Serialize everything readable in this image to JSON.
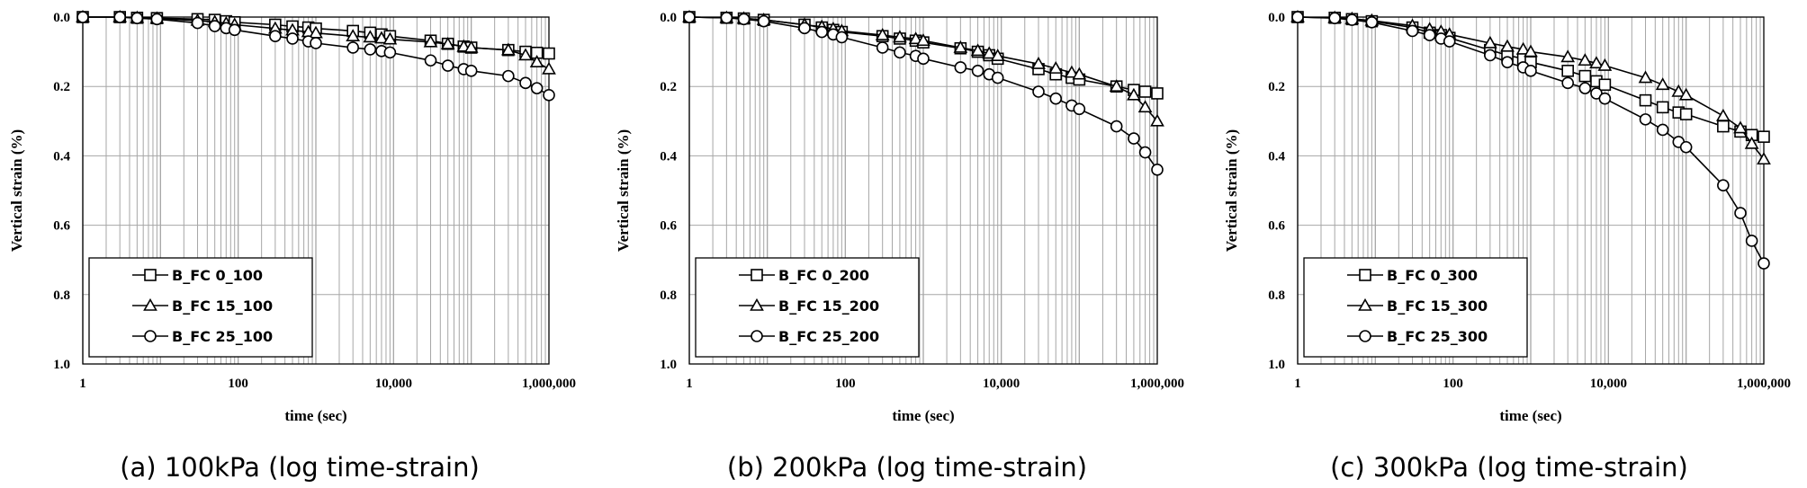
{
  "chart_data": [
    {
      "type": "line",
      "caption": "(a) 100kPa (log time-strain)",
      "xlabel": "time (sec)",
      "ylabel": "Vertical strain (%)",
      "x_scale": "log",
      "xlim": [
        1,
        1000000
      ],
      "ylim": [
        0,
        1.0
      ],
      "y_inverted": true,
      "x_tick_labels": [
        "1",
        "100",
        "10,000",
        "1,000,000"
      ],
      "y_tick_labels": [
        "0.0",
        "0.2",
        "0.4",
        "0.6",
        "0.8",
        "1.0"
      ],
      "grid": true,
      "legend": "bottom-left",
      "series": [
        {
          "name": "B_FC 0_100",
          "marker": "square",
          "x": [
            1,
            3,
            5,
            9,
            30,
            50,
            70,
            90,
            300,
            500,
            800,
            1000,
            3000,
            5000,
            7000,
            9000,
            30000,
            50000,
            80000,
            100000,
            300000,
            500000,
            700000,
            1000000
          ],
          "y": [
            0,
            0,
            0.002,
            0.003,
            0.006,
            0.008,
            0.012,
            0.015,
            0.022,
            0.027,
            0.03,
            0.033,
            0.04,
            0.045,
            0.05,
            0.055,
            0.068,
            0.077,
            0.085,
            0.088,
            0.095,
            0.1,
            0.103,
            0.105
          ]
        },
        {
          "name": "B_FC 15_100",
          "marker": "triangle",
          "x": [
            1,
            3,
            5,
            9,
            30,
            50,
            70,
            90,
            300,
            500,
            800,
            1000,
            3000,
            5000,
            7000,
            9000,
            30000,
            50000,
            80000,
            100000,
            300000,
            500000,
            700000,
            1000000
          ],
          "y": [
            0,
            0,
            0.002,
            0.004,
            0.01,
            0.014,
            0.018,
            0.022,
            0.033,
            0.038,
            0.043,
            0.046,
            0.055,
            0.058,
            0.061,
            0.064,
            0.072,
            0.078,
            0.085,
            0.088,
            0.095,
            0.11,
            0.13,
            0.15
          ]
        },
        {
          "name": "B_FC 25_100",
          "marker": "circle",
          "x": [
            1,
            3,
            5,
            9,
            30,
            50,
            70,
            90,
            300,
            500,
            800,
            1000,
            3000,
            5000,
            7000,
            9000,
            30000,
            50000,
            80000,
            100000,
            300000,
            500000,
            700000,
            1000000
          ],
          "y": [
            0,
            0,
            0.003,
            0.006,
            0.017,
            0.026,
            0.032,
            0.037,
            0.055,
            0.062,
            0.07,
            0.075,
            0.088,
            0.093,
            0.098,
            0.102,
            0.125,
            0.14,
            0.15,
            0.155,
            0.17,
            0.19,
            0.205,
            0.225
          ]
        }
      ]
    },
    {
      "type": "line",
      "caption": "(b) 200kPa (log time-strain)",
      "xlabel": "time (sec)",
      "ylabel": "Vertical strain (%)",
      "x_scale": "log",
      "xlim": [
        1,
        1000000
      ],
      "ylim": [
        0,
        1.0
      ],
      "y_inverted": true,
      "x_tick_labels": [
        "1",
        "100",
        "10,000",
        "1,000,000"
      ],
      "y_tick_labels": [
        "0.0",
        "0.2",
        "0.4",
        "0.6",
        "0.8",
        "1.0"
      ],
      "grid": true,
      "legend": "bottom-left",
      "series": [
        {
          "name": "B_FC 0_200",
          "marker": "square",
          "x": [
            1,
            3,
            5,
            9,
            30,
            50,
            70,
            90,
            300,
            500,
            800,
            1000,
            3000,
            5000,
            7000,
            9000,
            30000,
            50000,
            80000,
            100000,
            300000,
            500000,
            700000,
            1000000
          ],
          "y": [
            0,
            0.002,
            0.004,
            0.008,
            0.022,
            0.03,
            0.037,
            0.043,
            0.055,
            0.062,
            0.068,
            0.073,
            0.09,
            0.1,
            0.11,
            0.12,
            0.15,
            0.165,
            0.175,
            0.18,
            0.2,
            0.21,
            0.215,
            0.22
          ]
        },
        {
          "name": "B_FC 15_200",
          "marker": "triangle",
          "x": [
            1,
            3,
            5,
            9,
            30,
            50,
            70,
            90,
            300,
            500,
            800,
            1000,
            3000,
            5000,
            7000,
            9000,
            30000,
            50000,
            80000,
            100000,
            300000,
            500000,
            700000,
            1000000
          ],
          "y": [
            0,
            0.002,
            0.004,
            0.008,
            0.022,
            0.028,
            0.034,
            0.04,
            0.052,
            0.058,
            0.063,
            0.068,
            0.088,
            0.097,
            0.105,
            0.112,
            0.135,
            0.148,
            0.16,
            0.165,
            0.2,
            0.225,
            0.26,
            0.3
          ]
        },
        {
          "name": "B_FC 25_200",
          "marker": "circle",
          "x": [
            1,
            3,
            5,
            9,
            30,
            50,
            70,
            90,
            300,
            500,
            800,
            1000,
            3000,
            5000,
            7000,
            9000,
            30000,
            50000,
            80000,
            100000,
            300000,
            500000,
            700000,
            1000000
          ],
          "y": [
            0,
            0.002,
            0.006,
            0.012,
            0.032,
            0.043,
            0.05,
            0.058,
            0.088,
            0.102,
            0.112,
            0.12,
            0.145,
            0.155,
            0.165,
            0.175,
            0.215,
            0.235,
            0.255,
            0.265,
            0.315,
            0.35,
            0.39,
            0.44
          ]
        }
      ]
    },
    {
      "type": "line",
      "caption": "(c) 300kPa (log time-strain)",
      "xlabel": "time (sec)",
      "ylabel": "Vertical strain (%)",
      "x_scale": "log",
      "xlim": [
        1,
        1000000
      ],
      "ylim": [
        0,
        1.0
      ],
      "y_inverted": true,
      "x_tick_labels": [
        "1",
        "100",
        "10,000",
        "1,000,000"
      ],
      "y_tick_labels": [
        "0.0",
        "0.2",
        "0.4",
        "0.6",
        "0.8",
        "1.0"
      ],
      "grid": true,
      "legend": "bottom-left",
      "series": [
        {
          "name": "B_FC 0_300",
          "marker": "square",
          "x": [
            1,
            3,
            5,
            9,
            30,
            50,
            70,
            90,
            300,
            500,
            800,
            1000,
            3000,
            5000,
            7000,
            9000,
            30000,
            50000,
            80000,
            100000,
            300000,
            500000,
            700000,
            1000000
          ],
          "y": [
            0,
            0.002,
            0.006,
            0.012,
            0.03,
            0.045,
            0.052,
            0.06,
            0.095,
            0.11,
            0.12,
            0.13,
            0.155,
            0.17,
            0.185,
            0.195,
            0.24,
            0.26,
            0.275,
            0.28,
            0.315,
            0.33,
            0.34,
            0.345
          ]
        },
        {
          "name": "B_FC 15_300",
          "marker": "triangle",
          "x": [
            1,
            3,
            5,
            9,
            30,
            50,
            70,
            90,
            300,
            500,
            800,
            1000,
            3000,
            5000,
            7000,
            9000,
            30000,
            50000,
            80000,
            100000,
            300000,
            500000,
            700000,
            1000000
          ],
          "y": [
            0,
            0.002,
            0.005,
            0.01,
            0.025,
            0.035,
            0.042,
            0.05,
            0.075,
            0.085,
            0.093,
            0.1,
            0.115,
            0.125,
            0.133,
            0.14,
            0.175,
            0.195,
            0.215,
            0.225,
            0.285,
            0.32,
            0.365,
            0.41
          ]
        },
        {
          "name": "B_FC 25_300",
          "marker": "circle",
          "x": [
            1,
            3,
            5,
            9,
            30,
            50,
            70,
            90,
            300,
            500,
            800,
            1000,
            3000,
            5000,
            7000,
            9000,
            30000,
            50000,
            80000,
            100000,
            300000,
            500000,
            700000,
            1000000
          ],
          "y": [
            0,
            0.003,
            0.008,
            0.015,
            0.04,
            0.052,
            0.062,
            0.07,
            0.11,
            0.13,
            0.145,
            0.155,
            0.19,
            0.205,
            0.22,
            0.235,
            0.295,
            0.325,
            0.36,
            0.375,
            0.485,
            0.565,
            0.645,
            0.71
          ]
        }
      ]
    }
  ]
}
